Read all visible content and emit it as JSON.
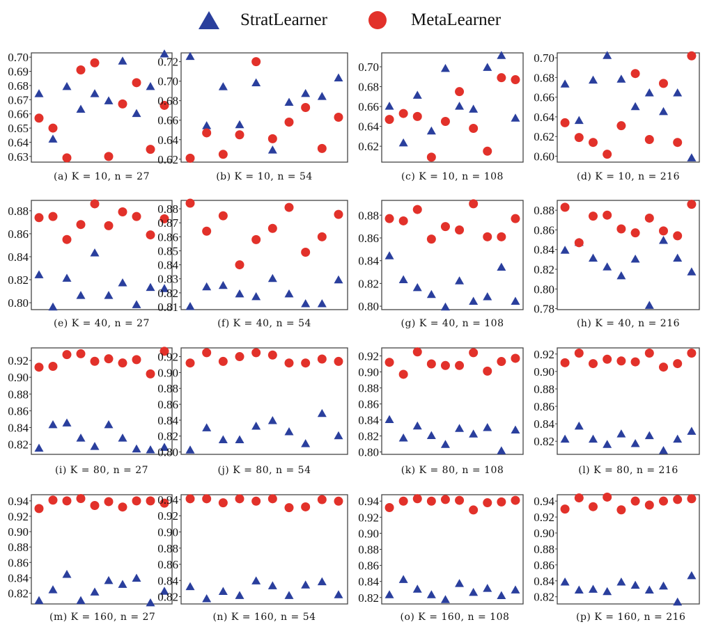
{
  "legend": {
    "placement": "top-center",
    "items": [
      {
        "name": "StratLearner",
        "marker": "triangle",
        "color": "#2a3f9d"
      },
      {
        "name": "MetaLearner",
        "marker": "circle",
        "color": "#e2312a"
      }
    ]
  },
  "chart_data": [
    {
      "type": "scatter",
      "caption": "(a) K = 10, n = 27",
      "ylim": [
        0.626,
        0.703
      ],
      "yticks": [
        "0.63",
        "0.64",
        "0.65",
        "0.66",
        "0.67",
        "0.68",
        "0.69",
        "0.70"
      ],
      "series": [
        {
          "name": "StratLearner",
          "values": [
            0.674,
            0.642,
            0.679,
            0.663,
            0.674,
            0.669,
            0.697,
            0.66,
            0.679,
            0.702
          ]
        },
        {
          "name": "MetaLearner",
          "values": [
            0.657,
            0.65,
            0.629,
            0.691,
            0.696,
            0.63,
            0.667,
            0.682,
            0.635,
            0.666
          ]
        }
      ]
    },
    {
      "type": "scatter",
      "caption": "(b) K = 10, n = 54",
      "ylim": [
        0.617,
        0.729
      ],
      "yticks": [
        "0.62",
        "0.64",
        "0.66",
        "0.68",
        "0.70",
        "0.72"
      ],
      "series": [
        {
          "name": "StratLearner",
          "values": [
            0.725,
            0.654,
            0.694,
            0.655,
            0.698,
            0.629,
            0.678,
            0.687,
            0.684,
            0.703
          ]
        },
        {
          "name": "MetaLearner",
          "values": [
            0.621,
            0.647,
            0.625,
            0.645,
            0.72,
            0.641,
            0.658,
            0.673,
            0.631,
            0.663
          ]
        }
      ]
    },
    {
      "type": "scatter",
      "caption": "(c) K = 10, n = 108",
      "ylim": [
        0.604,
        0.714
      ],
      "yticks": [
        "0.62",
        "0.64",
        "0.66",
        "0.68",
        "0.70"
      ],
      "series": [
        {
          "name": "StratLearner",
          "values": [
            0.66,
            0.623,
            0.671,
            0.635,
            0.698,
            0.66,
            0.657,
            0.699,
            0.711,
            0.648
          ]
        },
        {
          "name": "MetaLearner",
          "values": [
            0.647,
            0.653,
            0.65,
            0.609,
            0.645,
            0.675,
            0.638,
            0.615,
            0.689,
            0.687
          ]
        }
      ]
    },
    {
      "type": "scatter",
      "caption": "(d) K = 10, n = 216",
      "ylim": [
        0.594,
        0.705
      ],
      "yticks": [
        "0.60",
        "0.62",
        "0.64",
        "0.66",
        "0.68",
        "0.70"
      ],
      "series": [
        {
          "name": "StratLearner",
          "values": [
            0.673,
            0.636,
            0.677,
            0.702,
            0.678,
            0.65,
            0.664,
            0.645,
            0.664,
            0.598
          ]
        },
        {
          "name": "MetaLearner",
          "values": [
            0.634,
            0.619,
            0.614,
            0.602,
            0.631,
            0.684,
            0.617,
            0.674,
            0.614,
            0.702
          ]
        }
      ]
    },
    {
      "type": "scatter",
      "caption": "(e) K = 40, n = 27",
      "ylim": [
        0.794,
        0.889
      ],
      "yticks": [
        "0.80",
        "0.82",
        "0.84",
        "0.86",
        "0.88"
      ],
      "series": [
        {
          "name": "StratLearner",
          "values": [
            0.824,
            0.796,
            0.821,
            0.806,
            0.843,
            0.806,
            0.817,
            0.798,
            0.813,
            0.812
          ]
        },
        {
          "name": "MetaLearner",
          "values": [
            0.874,
            0.875,
            0.855,
            0.868,
            0.886,
            0.867,
            0.879,
            0.875,
            0.859,
            0.873
          ]
        }
      ]
    },
    {
      "type": "scatter",
      "caption": "(f) K = 40, n = 54",
      "ylim": [
        0.808,
        0.886
      ],
      "yticks": [
        "0.81",
        "0.82",
        "0.83",
        "0.84",
        "0.85",
        "0.86",
        "0.87",
        "0.88"
      ],
      "series": [
        {
          "name": "StratLearner",
          "values": [
            0.81,
            0.824,
            0.825,
            0.819,
            0.817,
            0.83,
            0.819,
            0.812,
            0.812,
            0.829
          ]
        },
        {
          "name": "MetaLearner",
          "values": [
            0.884,
            0.864,
            0.875,
            0.84,
            0.858,
            0.866,
            0.881,
            0.849,
            0.86,
            0.876
          ]
        }
      ]
    },
    {
      "type": "scatter",
      "caption": "(g) K = 40, n = 108",
      "ylim": [
        0.797,
        0.893
      ],
      "yticks": [
        "0.80",
        "0.82",
        "0.84",
        "0.86",
        "0.88"
      ],
      "series": [
        {
          "name": "StratLearner",
          "values": [
            0.844,
            0.823,
            0.816,
            0.81,
            0.799,
            0.822,
            0.804,
            0.808,
            0.834,
            0.804
          ]
        },
        {
          "name": "MetaLearner",
          "values": [
            0.877,
            0.875,
            0.885,
            0.859,
            0.87,
            0.867,
            0.89,
            0.861,
            0.861,
            0.877
          ]
        }
      ]
    },
    {
      "type": "scatter",
      "caption": "(h) K = 40, n = 216",
      "ylim": [
        0.779,
        0.89
      ],
      "yticks": [
        "0.78",
        "0.80",
        "0.82",
        "0.84",
        "0.86",
        "0.88"
      ],
      "series": [
        {
          "name": "StratLearner",
          "values": [
            0.839,
            0.847,
            0.831,
            0.822,
            0.813,
            0.83,
            0.783,
            0.849,
            0.831,
            0.817
          ]
        },
        {
          "name": "MetaLearner",
          "values": [
            0.883,
            0.847,
            0.874,
            0.875,
            0.861,
            0.857,
            0.872,
            0.859,
            0.854,
            0.886
          ]
        }
      ]
    },
    {
      "type": "scatter",
      "caption": "(i) K = 80, n = 27",
      "ylim": [
        0.808,
        0.935
      ],
      "yticks": [
        "0.82",
        "0.84",
        "0.86",
        "0.88",
        "0.90",
        "0.92"
      ],
      "series": [
        {
          "name": "StratLearner",
          "values": [
            0.815,
            0.843,
            0.845,
            0.827,
            0.817,
            0.843,
            0.827,
            0.814,
            0.813,
            0.816
          ]
        },
        {
          "name": "MetaLearner",
          "values": [
            0.912,
            0.913,
            0.927,
            0.928,
            0.919,
            0.922,
            0.917,
            0.921,
            0.904,
            0.931
          ]
        }
      ]
    },
    {
      "type": "scatter",
      "caption": "(j) K = 80, n = 54",
      "ylim": [
        0.797,
        0.931
      ],
      "yticks": [
        "0.80",
        "0.82",
        "0.84",
        "0.86",
        "0.88",
        "0.90",
        "0.92"
      ],
      "series": [
        {
          "name": "StratLearner",
          "values": [
            0.802,
            0.83,
            0.815,
            0.815,
            0.832,
            0.839,
            0.825,
            0.81,
            0.848,
            0.82
          ]
        },
        {
          "name": "MetaLearner",
          "values": [
            0.912,
            0.925,
            0.914,
            0.92,
            0.925,
            0.922,
            0.912,
            0.912,
            0.917,
            0.914
          ]
        }
      ]
    },
    {
      "type": "scatter",
      "caption": "(k) K = 80, n = 108",
      "ylim": [
        0.797,
        0.93
      ],
      "yticks": [
        "0.80",
        "0.82",
        "0.84",
        "0.86",
        "0.88",
        "0.90",
        "0.92"
      ],
      "series": [
        {
          "name": "StratLearner",
          "values": [
            0.84,
            0.817,
            0.832,
            0.82,
            0.809,
            0.829,
            0.822,
            0.83,
            0.801,
            0.827
          ]
        },
        {
          "name": "MetaLearner",
          "values": [
            0.912,
            0.897,
            0.925,
            0.91,
            0.908,
            0.908,
            0.924,
            0.901,
            0.913,
            0.917
          ]
        }
      ]
    },
    {
      "type": "scatter",
      "caption": "(l) K = 80, n = 216",
      "ylim": [
        0.805,
        0.927
      ],
      "yticks": [
        "0.82",
        "0.84",
        "0.86",
        "0.88",
        "0.90",
        "0.92"
      ],
      "series": [
        {
          "name": "StratLearner",
          "values": [
            0.822,
            0.837,
            0.822,
            0.816,
            0.828,
            0.817,
            0.826,
            0.809,
            0.822,
            0.831
          ]
        },
        {
          "name": "MetaLearner",
          "values": [
            0.91,
            0.921,
            0.909,
            0.914,
            0.912,
            0.911,
            0.921,
            0.905,
            0.909,
            0.921
          ]
        }
      ]
    },
    {
      "type": "scatter",
      "caption": "(m) K = 160, n = 27",
      "ylim": [
        0.806,
        0.948
      ],
      "yticks": [
        "0.82",
        "0.84",
        "0.86",
        "0.88",
        "0.90",
        "0.92",
        "0.94"
      ],
      "series": [
        {
          "name": "StratLearner",
          "values": [
            0.81,
            0.824,
            0.844,
            0.81,
            0.821,
            0.836,
            0.831,
            0.839,
            0.807,
            0.822
          ]
        },
        {
          "name": "MetaLearner",
          "values": [
            0.93,
            0.941,
            0.94,
            0.943,
            0.934,
            0.939,
            0.932,
            0.94,
            0.94,
            0.937
          ]
        }
      ]
    },
    {
      "type": "scatter",
      "caption": "(n) K = 160, n = 54",
      "ylim": [
        0.811,
        0.946
      ],
      "yticks": [
        "0.82",
        "0.84",
        "0.86",
        "0.88",
        "0.90",
        "0.92",
        "0.94"
      ],
      "series": [
        {
          "name": "StratLearner",
          "values": [
            0.832,
            0.817,
            0.826,
            0.821,
            0.839,
            0.833,
            0.821,
            0.834,
            0.838,
            0.822
          ]
        },
        {
          "name": "MetaLearner",
          "values": [
            0.941,
            0.941,
            0.936,
            0.941,
            0.938,
            0.941,
            0.93,
            0.931,
            0.94,
            0.938
          ]
        }
      ]
    },
    {
      "type": "scatter",
      "caption": "(o) K = 160, n = 108",
      "ylim": [
        0.812,
        0.948
      ],
      "yticks": [
        "0.82",
        "0.84",
        "0.86",
        "0.88",
        "0.90",
        "0.92",
        "0.94"
      ],
      "series": [
        {
          "name": "StratLearner",
          "values": [
            0.823,
            0.842,
            0.83,
            0.823,
            0.817,
            0.837,
            0.826,
            0.831,
            0.822,
            0.829
          ]
        },
        {
          "name": "MetaLearner",
          "values": [
            0.932,
            0.94,
            0.943,
            0.94,
            0.942,
            0.941,
            0.929,
            0.938,
            0.939,
            0.941
          ]
        }
      ]
    },
    {
      "type": "scatter",
      "caption": "(p) K = 160, n = 216",
      "ylim": [
        0.811,
        0.948
      ],
      "yticks": [
        "0.82",
        "0.84",
        "0.86",
        "0.88",
        "0.90",
        "0.92",
        "0.94"
      ],
      "series": [
        {
          "name": "StratLearner",
          "values": [
            0.838,
            0.828,
            0.829,
            0.826,
            0.838,
            0.834,
            0.828,
            0.833,
            0.813,
            0.846
          ]
        },
        {
          "name": "MetaLearner",
          "values": [
            0.93,
            0.944,
            0.933,
            0.945,
            0.929,
            0.94,
            0.935,
            0.94,
            0.942,
            0.943
          ]
        }
      ]
    }
  ]
}
